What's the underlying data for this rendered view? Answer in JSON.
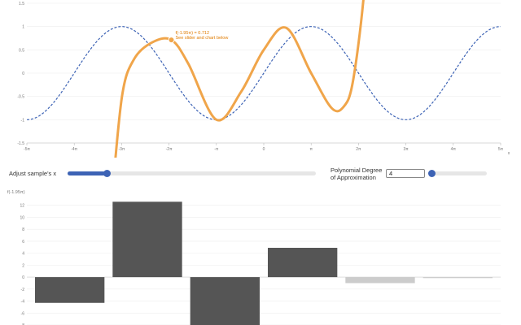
{
  "annotation": {
    "line1": "f(-1.95π) = 0.712",
    "line2": "See slider and chart below"
  },
  "controls": {
    "sample_x_label": "Adjust sample's x",
    "sample_x_fraction": 0.16,
    "degree_label_line1": "Polynomial Degree",
    "degree_label_line2": "of Approximation",
    "degree_value": "4",
    "degree_fraction": 0.0
  },
  "colors": {
    "accent": "#3d63b5",
    "approx_curve": "#f0a54a",
    "annotation_text": "#e07b00",
    "bar_dark": "#555555",
    "bar_light": "#cccccc"
  },
  "chart_data": [
    {
      "type": "line",
      "title": "",
      "xlabel": "x",
      "ylabel": "",
      "xlim": [
        -15.708,
        15.708
      ],
      "ylim": [
        -1.5,
        1.5
      ],
      "x_tick_labels": [
        "-5π",
        "-4π",
        "-3π",
        "-2π",
        "-π",
        "0",
        "π",
        "2π",
        "3π",
        "4π",
        "5π"
      ],
      "y_ticks": [
        -1.5,
        -1,
        -0.5,
        0,
        0.5,
        1,
        1.5
      ],
      "y_tick_labels": [
        "-1.5",
        "-1",
        "-0.5",
        "0",
        "0.5",
        "1",
        "1.5"
      ],
      "series": [
        {
          "function": "sin(x/2)",
          "style": "dashed",
          "color": "#3d63b5"
        },
        {
          "function": "taylor(sin(x/2), center=-1.95π, degree=4)",
          "style": "solid",
          "color": "#f0a54a"
        }
      ],
      "highlight_point": {
        "x": -6.126,
        "y": 0.712
      }
    },
    {
      "type": "bar",
      "title": "",
      "ylabel": "f(-1.95π)",
      "ylim": [
        -8,
        14
      ],
      "y_ticks": [
        -8,
        -6,
        -4,
        -2,
        0,
        2,
        4,
        6,
        8,
        10,
        12
      ],
      "y_tick_labels": [
        "-8",
        "-6",
        "-4",
        "-2",
        "0",
        "2",
        "4",
        "6",
        "8",
        "10",
        "12"
      ],
      "values": [
        -4.3,
        12.6,
        -8.8,
        4.9,
        -1.0,
        -0.1
      ],
      "active": [
        true,
        true,
        true,
        true,
        false,
        false
      ]
    }
  ]
}
